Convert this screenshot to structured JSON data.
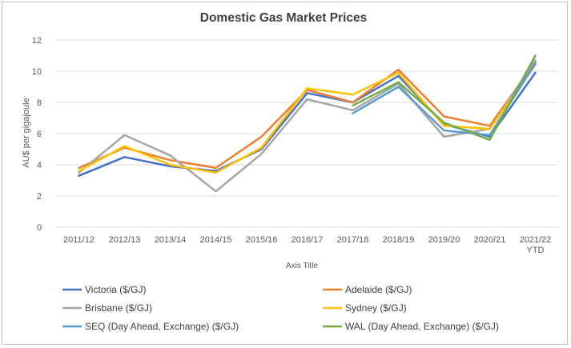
{
  "chart_data": {
    "type": "line",
    "title": "Domestic Gas Market Prices",
    "xlabel": "Axis Title",
    "ylabel": "AU$ per gigajoule",
    "ylim": [
      0,
      12
    ],
    "yticks": [
      0,
      2,
      4,
      6,
      8,
      10,
      12
    ],
    "grid": true,
    "legend_position": "bottom",
    "categories": [
      "2011/12",
      "2012/13",
      "2013/14",
      "2014/15",
      "2015/16",
      "2016/17",
      "2017/18",
      "2018/19",
      "2019/20",
      "2020/21",
      "2021/22 YTD"
    ],
    "category_lines": [
      [
        "2011/12"
      ],
      [
        "2012/13"
      ],
      [
        "2013/14"
      ],
      [
        "2014/15"
      ],
      [
        "2015/16"
      ],
      [
        "2016/17"
      ],
      [
        "2017/18"
      ],
      [
        "2018/19"
      ],
      [
        "2019/20"
      ],
      [
        "2020/21"
      ],
      [
        "2021/22",
        "YTD"
      ]
    ],
    "series": [
      {
        "name": "Victoria ($/GJ)",
        "color": "#4472c4",
        "values": [
          3.3,
          4.5,
          3.9,
          3.6,
          5.0,
          8.6,
          8.0,
          9.7,
          6.6,
          5.8,
          9.9
        ]
      },
      {
        "name": "Adelaide ($/GJ)",
        "color": "#ed7d31",
        "values": [
          3.8,
          5.1,
          4.3,
          3.8,
          5.8,
          8.8,
          8.0,
          10.1,
          7.1,
          6.5,
          10.6
        ]
      },
      {
        "name": "Brisbane ($/GJ)",
        "color": "#a5a5a5",
        "values": [
          3.5,
          5.9,
          4.6,
          2.3,
          4.7,
          8.2,
          7.5,
          9.2,
          5.8,
          6.3,
          10.7
        ]
      },
      {
        "name": "Sydney ($/GJ)",
        "color": "#ffc000",
        "values": [
          3.6,
          5.2,
          4.0,
          3.5,
          5.1,
          8.9,
          8.5,
          9.9,
          6.5,
          6.3,
          10.4
        ]
      },
      {
        "name": "SEQ (Day Ahead, Exchange) ($/GJ)",
        "color": "#5b9bd5",
        "values": [
          null,
          null,
          null,
          null,
          null,
          null,
          7.3,
          9.0,
          6.2,
          5.9,
          10.5
        ]
      },
      {
        "name": "WAL (Day Ahead, Exchange) ($/GJ)",
        "color": "#70ad47",
        "values": [
          null,
          null,
          null,
          null,
          null,
          null,
          7.8,
          9.3,
          6.7,
          5.6,
          11.0
        ]
      }
    ]
  }
}
